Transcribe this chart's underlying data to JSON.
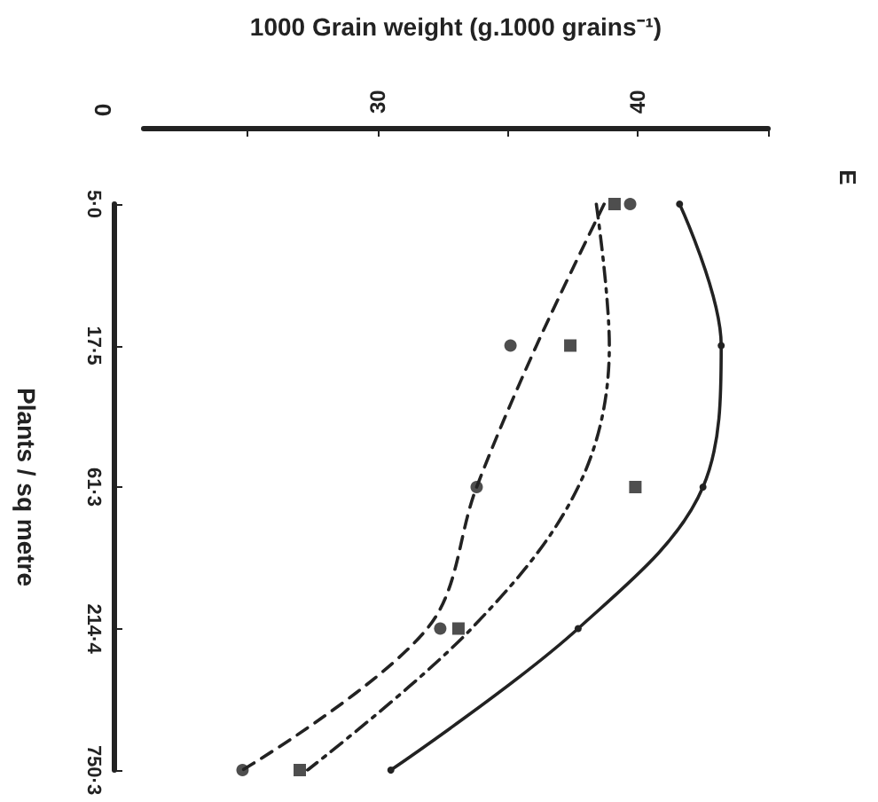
{
  "chart_data": {
    "type": "line",
    "orientation": "horizontal",
    "xlabel": "1000 Grain weight (g.1000 grains⁻¹)",
    "ylabel": "Plants / sq metre",
    "categories": [
      "5·0",
      "17·5",
      "61·3",
      "214·4",
      "750·3"
    ],
    "xlim": [
      21,
      45
    ],
    "xticks": [
      {
        "value": 25,
        "label": null
      },
      30,
      {
        "value": 35,
        "label": null
      },
      40,
      {
        "value": 45,
        "label": null
      }
    ],
    "grid": false,
    "annotations": [
      "0",
      "E"
    ],
    "series": [
      {
        "color": "#222222",
        "line_style": "solid",
        "marker": "circle",
        "values": [
          41.6,
          43.2,
          42.5,
          37.7,
          30.5
        ]
      },
      {
        "color": "#222222",
        "line_style": "dashed",
        "marker": "none",
        "values": [
          38.7,
          36.1,
          33.8,
          31.9,
          24.8
        ]
      },
      {
        "type": "scatter",
        "color": "#222222",
        "marker": "circle",
        "values": [
          39.7,
          35.1,
          33.8,
          32.4,
          24.8
        ]
      },
      {
        "color": "#222222",
        "line_style": "dashdot",
        "marker": "none",
        "values": [
          38.4,
          38.9,
          37.7,
          33.6,
          27.3
        ]
      },
      {
        "type": "scatter",
        "color": "#222222",
        "marker": "square",
        "values": [
          39.1,
          37.4,
          39.9,
          33.1,
          27.0
        ]
      }
    ]
  }
}
